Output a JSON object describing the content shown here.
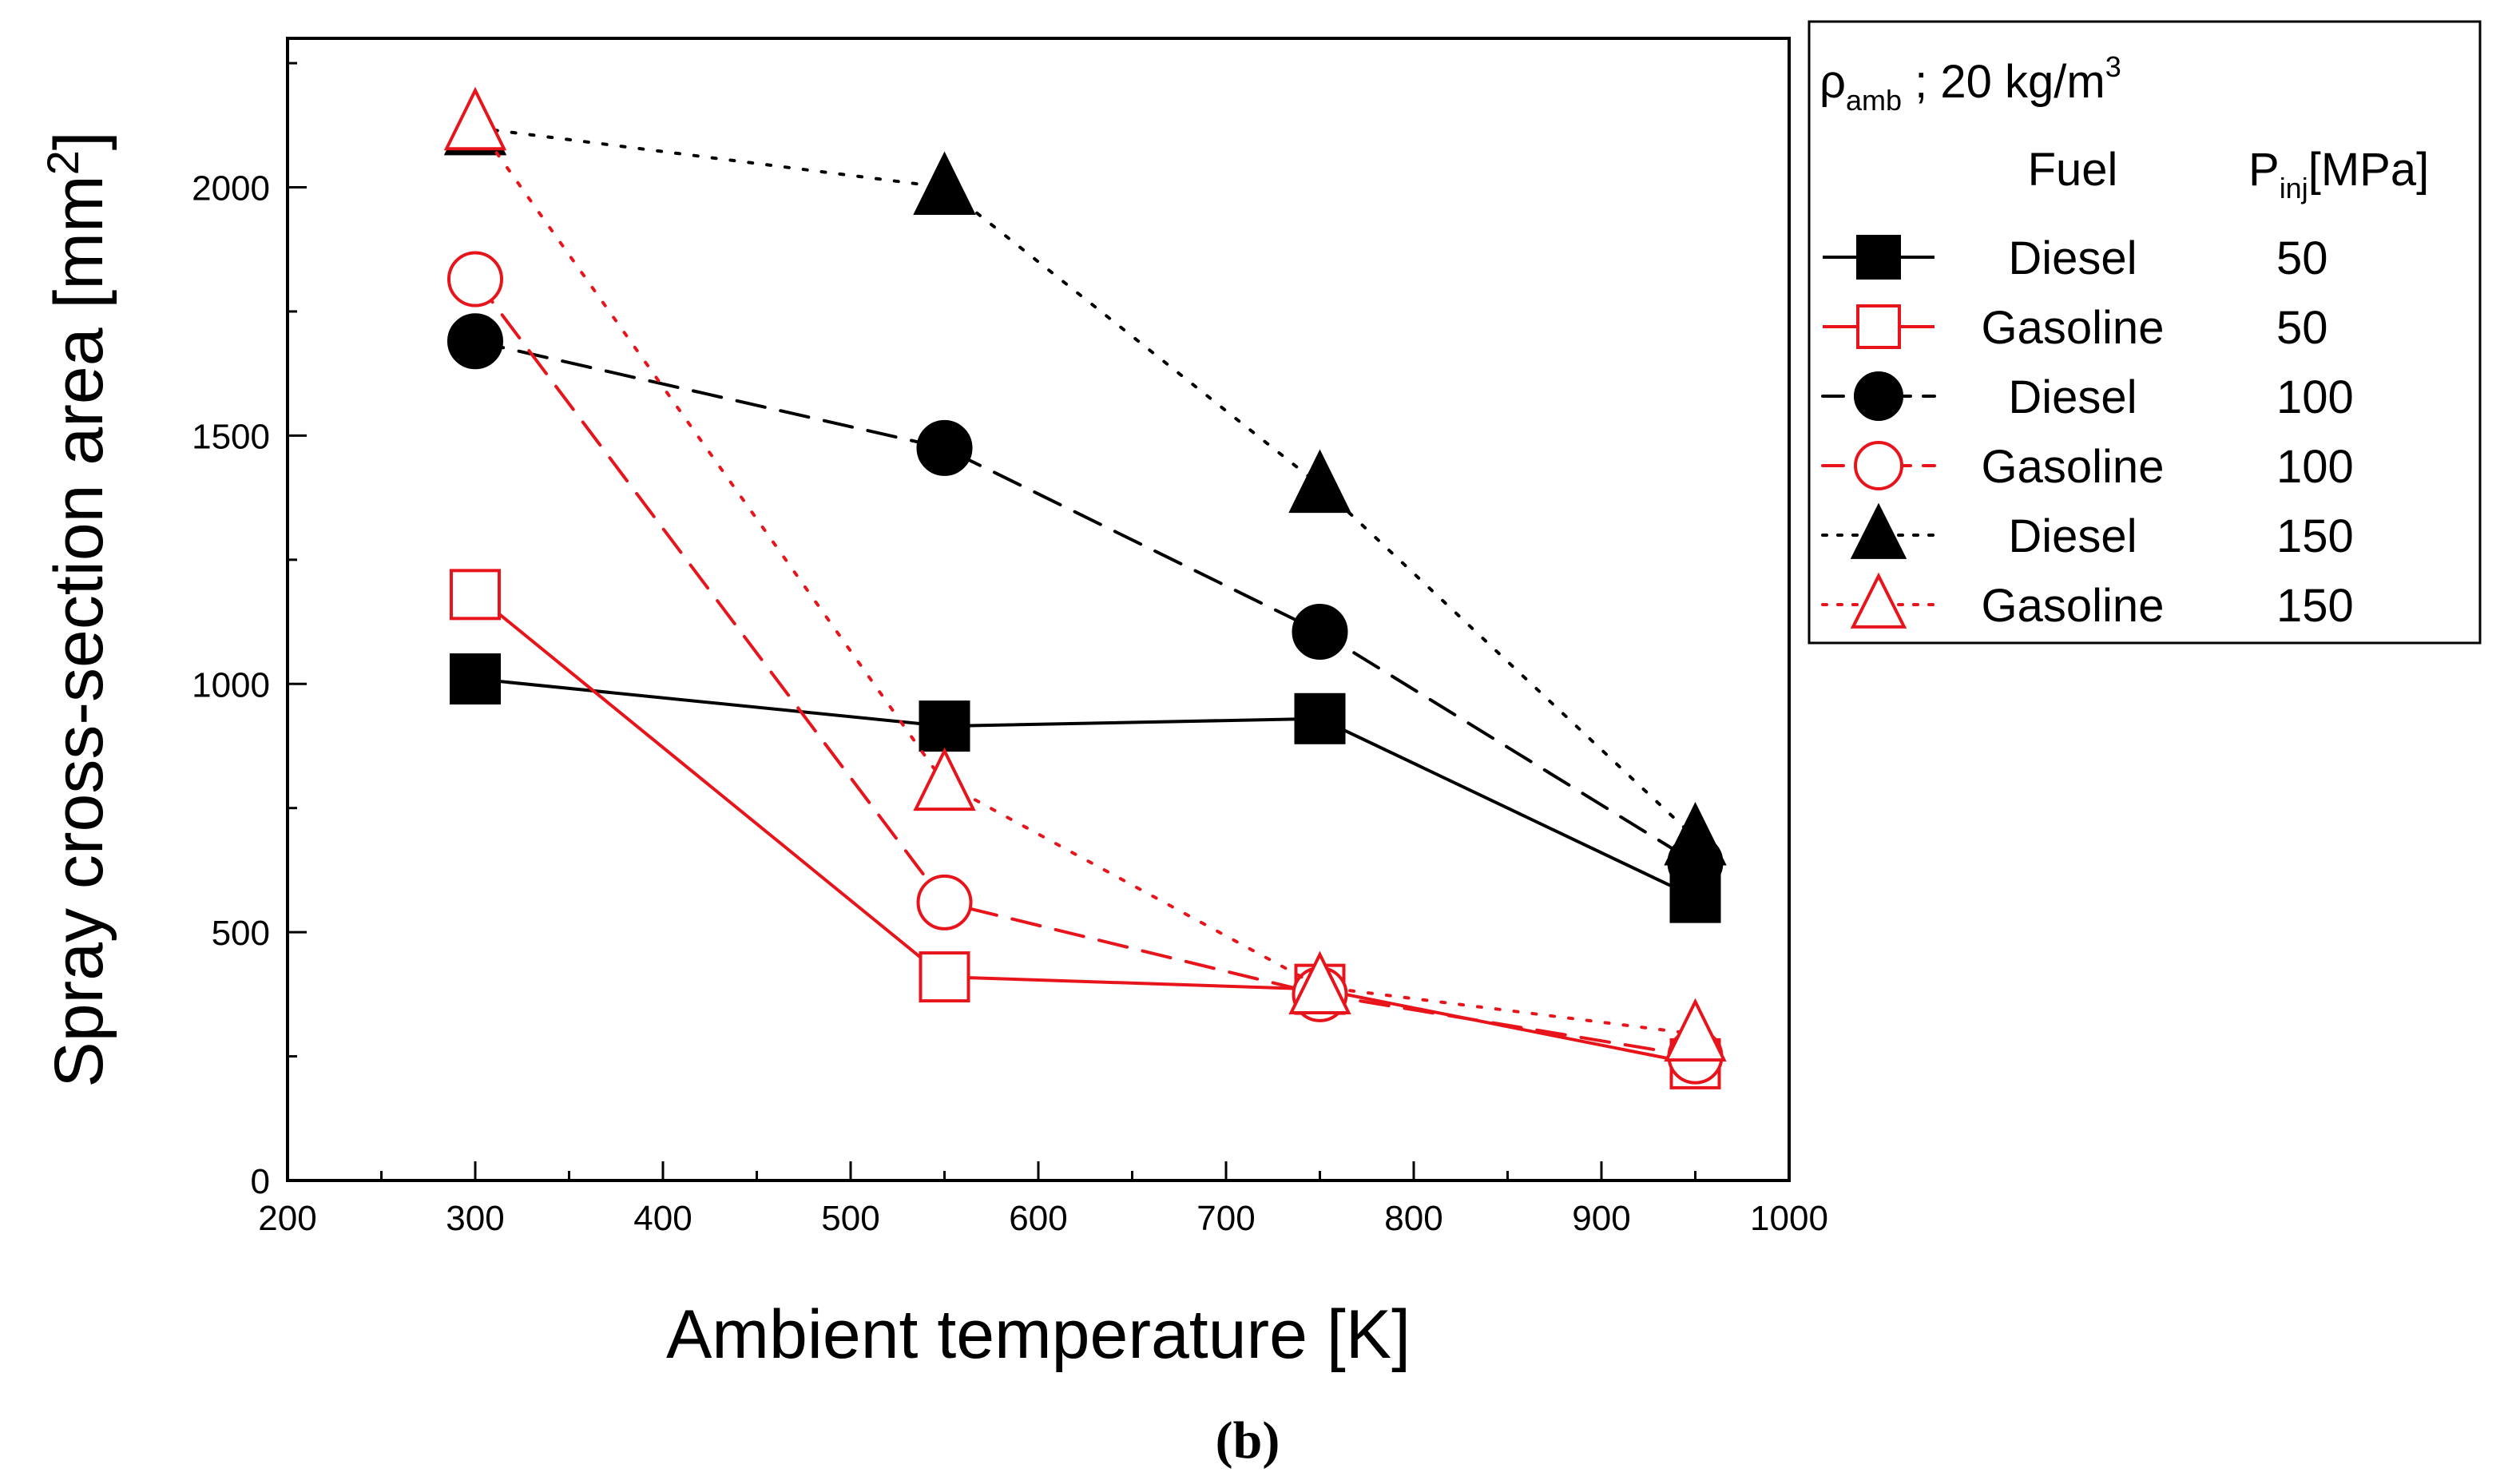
{
  "chart_data": {
    "type": "line",
    "caption": "(b)",
    "xlabel": "Ambient temperature [K]",
    "ylabel_main": "Spray cross-section area [mm",
    "ylabel_sup": "2",
    "ylabel_close": "]",
    "xlim": [
      200,
      1000
    ],
    "ylim": [
      0,
      2300
    ],
    "xticks": [
      200,
      300,
      400,
      500,
      600,
      700,
      800,
      900,
      1000
    ],
    "yticks": [
      0,
      500,
      1000,
      1500,
      2000
    ],
    "x": [
      300,
      550,
      750,
      950
    ],
    "legend": {
      "condition_symbol": "ρ",
      "condition_sub": "amb",
      "condition_text": " ; 20 kg/m",
      "condition_sup": "3",
      "col_fuel": "Fuel",
      "col_p": "P",
      "col_p_sub": "inj",
      "col_p_unit": "[MPa]"
    },
    "series": [
      {
        "name": "Diesel 50",
        "fuel": "Diesel",
        "pressure": "50",
        "color": "#000000",
        "marker": "square",
        "filled": true,
        "dash": "solid",
        "values": [
          1010,
          915,
          930,
          570
        ]
      },
      {
        "name": "Gasoline 50",
        "fuel": "Gasoline",
        "pressure": "50",
        "color": "#e8141b",
        "marker": "square",
        "filled": false,
        "dash": "solid",
        "values": [
          1180,
          410,
          385,
          235
        ]
      },
      {
        "name": "Diesel 100",
        "fuel": "Diesel",
        "pressure": "100",
        "color": "#000000",
        "marker": "circle",
        "filled": true,
        "dash": "dashed",
        "values": [
          1690,
          1475,
          1105,
          640
        ]
      },
      {
        "name": "Gasoline 100",
        "fuel": "Gasoline",
        "pressure": "100",
        "color": "#e8141b",
        "marker": "circle",
        "filled": false,
        "dash": "dashed",
        "values": [
          1815,
          560,
          375,
          250
        ]
      },
      {
        "name": "Diesel 150",
        "fuel": "Diesel",
        "pressure": "150",
        "color": "#000000",
        "marker": "triangle",
        "filled": true,
        "dash": "dotted",
        "values": [
          2120,
          2000,
          1400,
          690
        ]
      },
      {
        "name": "Gasoline 150",
        "fuel": "Gasoline",
        "pressure": "150",
        "color": "#e8141b",
        "marker": "triangle",
        "filled": false,
        "dash": "dotted",
        "values": [
          2130,
          800,
          390,
          295
        ]
      }
    ]
  }
}
